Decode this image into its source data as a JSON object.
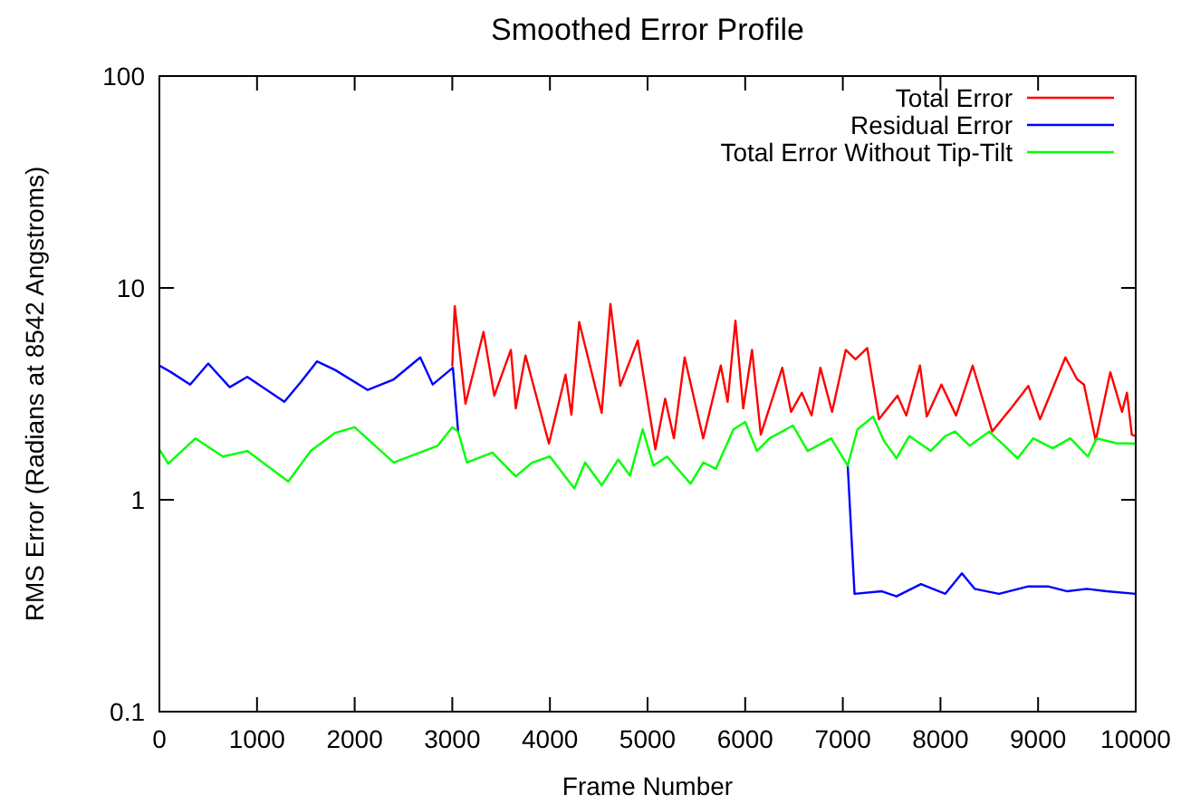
{
  "chart_data": {
    "type": "line",
    "title": "Smoothed Error Profile",
    "xlabel": "Frame Number",
    "ylabel": "RMS Error (Radians at 8542 Angstroms)",
    "log": "y",
    "xlim": [
      0,
      10000
    ],
    "ylim": [
      0.1,
      100
    ],
    "xticks": [
      0,
      1000,
      2000,
      3000,
      4000,
      5000,
      6000,
      7000,
      8000,
      9000,
      10000
    ],
    "yticks": [
      {
        "value": 0.1,
        "label": "0.1"
      },
      1,
      10,
      100
    ],
    "legend": "top right",
    "grid": false,
    "series": [
      {
        "name": "Total Error",
        "color": "#ff0000",
        "x": [
          3000,
          3025,
          3135,
          3320,
          3430,
          3600,
          3650,
          3750,
          3990,
          4160,
          4220,
          4300,
          4530,
          4620,
          4720,
          4900,
          5080,
          5180,
          5270,
          5380,
          5570,
          5750,
          5820,
          5900,
          5980,
          6070,
          6160,
          6380,
          6470,
          6580,
          6680,
          6770,
          6890,
          7030,
          7130,
          7250,
          7370,
          7560,
          7650,
          7790,
          7860,
          8010,
          8160,
          8330,
          8530,
          8730,
          8900,
          9020,
          9280,
          9400,
          9470,
          9590,
          9740,
          9860,
          9910,
          9960,
          10000
        ],
        "values": [
          4.3,
          8.2,
          2.84,
          6.2,
          3.1,
          5.1,
          2.7,
          4.8,
          1.84,
          3.9,
          2.52,
          6.9,
          2.57,
          8.4,
          3.45,
          5.65,
          1.73,
          3.0,
          1.95,
          4.7,
          1.95,
          4.3,
          2.9,
          7.0,
          2.7,
          5.1,
          2.03,
          4.2,
          2.6,
          3.2,
          2.5,
          4.2,
          2.6,
          5.1,
          4.6,
          5.2,
          2.4,
          3.1,
          2.5,
          4.3,
          2.47,
          3.5,
          2.5,
          4.3,
          2.1,
          2.73,
          3.45,
          2.4,
          4.7,
          3.7,
          3.5,
          1.9,
          4.0,
          2.6,
          3.2,
          2.03,
          2.0
        ]
      },
      {
        "name": "Residual Error",
        "color": "#0000ff",
        "x": [
          0,
          120,
          315,
          500,
          720,
          900,
          1280,
          1450,
          1614,
          1800,
          2134,
          2400,
          2672,
          2800,
          3006,
          3060,
          5000,
          7050,
          7120,
          7400,
          7550,
          7800,
          8050,
          8220,
          8350,
          8600,
          8900,
          9100,
          9300,
          9500,
          9700,
          10000
        ],
        "values": [
          4.3,
          4.0,
          3.5,
          4.4,
          3.4,
          3.8,
          2.9,
          3.6,
          4.5,
          4.1,
          3.3,
          3.7,
          4.7,
          3.5,
          4.2,
          2.1,
          null,
          1.45,
          0.36,
          0.37,
          0.35,
          0.4,
          0.36,
          0.45,
          0.38,
          0.36,
          0.39,
          0.39,
          0.37,
          0.38,
          0.37,
          0.36
        ]
      },
      {
        "name": "Total Error Without Tip-Tilt",
        "color": "#00ff00",
        "x": [
          0,
          90,
          370,
          650,
          900,
          1320,
          1550,
          1800,
          2000,
          2400,
          2850,
          3000,
          3060,
          3150,
          3410,
          3650,
          3820,
          4000,
          4250,
          4360,
          4530,
          4700,
          4820,
          4950,
          5060,
          5200,
          5440,
          5570,
          5700,
          5880,
          6000,
          6120,
          6250,
          6490,
          6640,
          6880,
          7050,
          7150,
          7310,
          7420,
          7550,
          7680,
          7900,
          8050,
          8150,
          8300,
          8500,
          8790,
          8950,
          9150,
          9330,
          9510,
          9600,
          9800,
          10000
        ],
        "values": [
          1.73,
          1.48,
          1.95,
          1.6,
          1.7,
          1.22,
          1.7,
          2.07,
          2.2,
          1.5,
          1.8,
          2.2,
          2.1,
          1.5,
          1.67,
          1.29,
          1.5,
          1.6,
          1.13,
          1.5,
          1.17,
          1.55,
          1.3,
          2.15,
          1.45,
          1.6,
          1.19,
          1.5,
          1.4,
          2.15,
          2.33,
          1.7,
          1.95,
          2.24,
          1.7,
          1.95,
          1.45,
          2.15,
          2.47,
          1.9,
          1.57,
          2.0,
          1.7,
          2.0,
          2.1,
          1.8,
          2.1,
          1.57,
          1.95,
          1.75,
          1.95,
          1.6,
          1.95,
          1.85,
          1.84
        ]
      }
    ]
  }
}
